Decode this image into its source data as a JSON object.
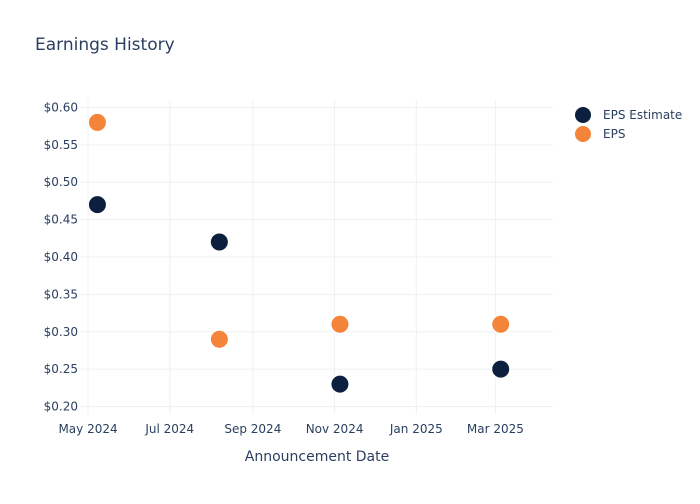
{
  "chart_data": {
    "type": "scatter",
    "title": "Earnings History",
    "xlabel": "Announcement Date",
    "ylabel": "",
    "x_ticks": [
      "2024-05-01",
      "2024-07-01",
      "2024-09-01",
      "2024-11-01",
      "2025-01-01",
      "2025-03-01"
    ],
    "x_tick_labels": [
      "May 2024",
      "Jul 2024",
      "Sep 2024",
      "Nov 2024",
      "Jan 2025",
      "Mar 2025"
    ],
    "xlim": [
      "2024-04-25",
      "2025-04-13"
    ],
    "y_ticks": [
      0.2,
      0.25,
      0.3,
      0.35,
      0.4,
      0.45,
      0.5,
      0.55,
      0.6
    ],
    "y_tick_labels": [
      "$0.20",
      "$0.25",
      "$0.30",
      "$0.35",
      "$0.40",
      "$0.45",
      "$0.50",
      "$0.55",
      "$0.60"
    ],
    "ylim": [
      0.19,
      0.61
    ],
    "grid": true,
    "legend_position": "top-right",
    "series": [
      {
        "name": "EPS Estimate",
        "color": "#0d1f3f",
        "points": [
          {
            "x": "2024-05-08",
            "y": 0.47
          },
          {
            "x": "2024-08-07",
            "y": 0.42
          },
          {
            "x": "2024-11-05",
            "y": 0.23
          },
          {
            "x": "2025-03-05",
            "y": 0.25
          }
        ]
      },
      {
        "name": "EPS",
        "color": "#f5843b",
        "points": [
          {
            "x": "2024-05-08",
            "y": 0.58
          },
          {
            "x": "2024-08-07",
            "y": 0.29
          },
          {
            "x": "2024-11-05",
            "y": 0.31
          },
          {
            "x": "2025-03-05",
            "y": 0.31
          }
        ]
      }
    ]
  }
}
